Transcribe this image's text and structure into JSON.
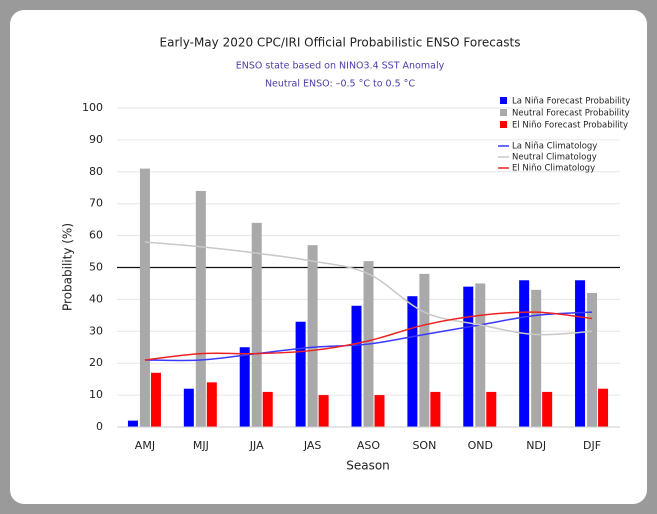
{
  "chart_data": {
    "type": "bar",
    "title": "Early-May 2020 CPC/IRI Official Probabilistic ENSO Forecasts",
    "subtitle": [
      "ENSO state based on NINO3.4 SST Anomaly",
      "Neutral ENSO: –0.5 °C to 0.5 °C"
    ],
    "x_label": "Season",
    "y_label": "Probability (%)",
    "categories": [
      "AMJ",
      "MJJ",
      "JJA",
      "JAS",
      "ASO",
      "SON",
      "OND",
      "NDJ",
      "DJF"
    ],
    "series": [
      {
        "name": "La Niña Forecast Probability",
        "color": "#0000ff",
        "values": [
          2,
          12,
          25,
          33,
          38,
          41,
          44,
          46,
          46
        ]
      },
      {
        "name": "Neutral Forecast Probability",
        "color": "#a9a9a9",
        "values": [
          81,
          74,
          64,
          57,
          52,
          48,
          45,
          43,
          42
        ]
      },
      {
        "name": "El Niño Forecast Probability",
        "color": "#ff0000",
        "values": [
          17,
          14,
          11,
          10,
          10,
          11,
          11,
          11,
          12
        ]
      }
    ],
    "lines": [
      {
        "name": "La Niña Climatology",
        "color": "#3a3aff",
        "values": [
          21,
          21,
          23,
          25,
          26,
          29,
          32,
          35,
          36
        ]
      },
      {
        "name": "Neutral Climatology",
        "color": "#c8c8c8",
        "values": [
          58,
          56.5,
          54.5,
          52,
          48,
          36,
          32,
          29,
          30
        ]
      },
      {
        "name": "El Niño Climatology",
        "color": "#ee2222",
        "values": [
          21,
          23,
          23,
          24,
          27,
          32,
          35,
          36,
          34
        ]
      }
    ],
    "reference_line": 50,
    "ylim": [
      0,
      100
    ],
    "yticks": [
      0,
      10,
      20,
      30,
      40,
      50,
      60,
      70,
      80,
      90,
      100
    ],
    "grid": true
  }
}
